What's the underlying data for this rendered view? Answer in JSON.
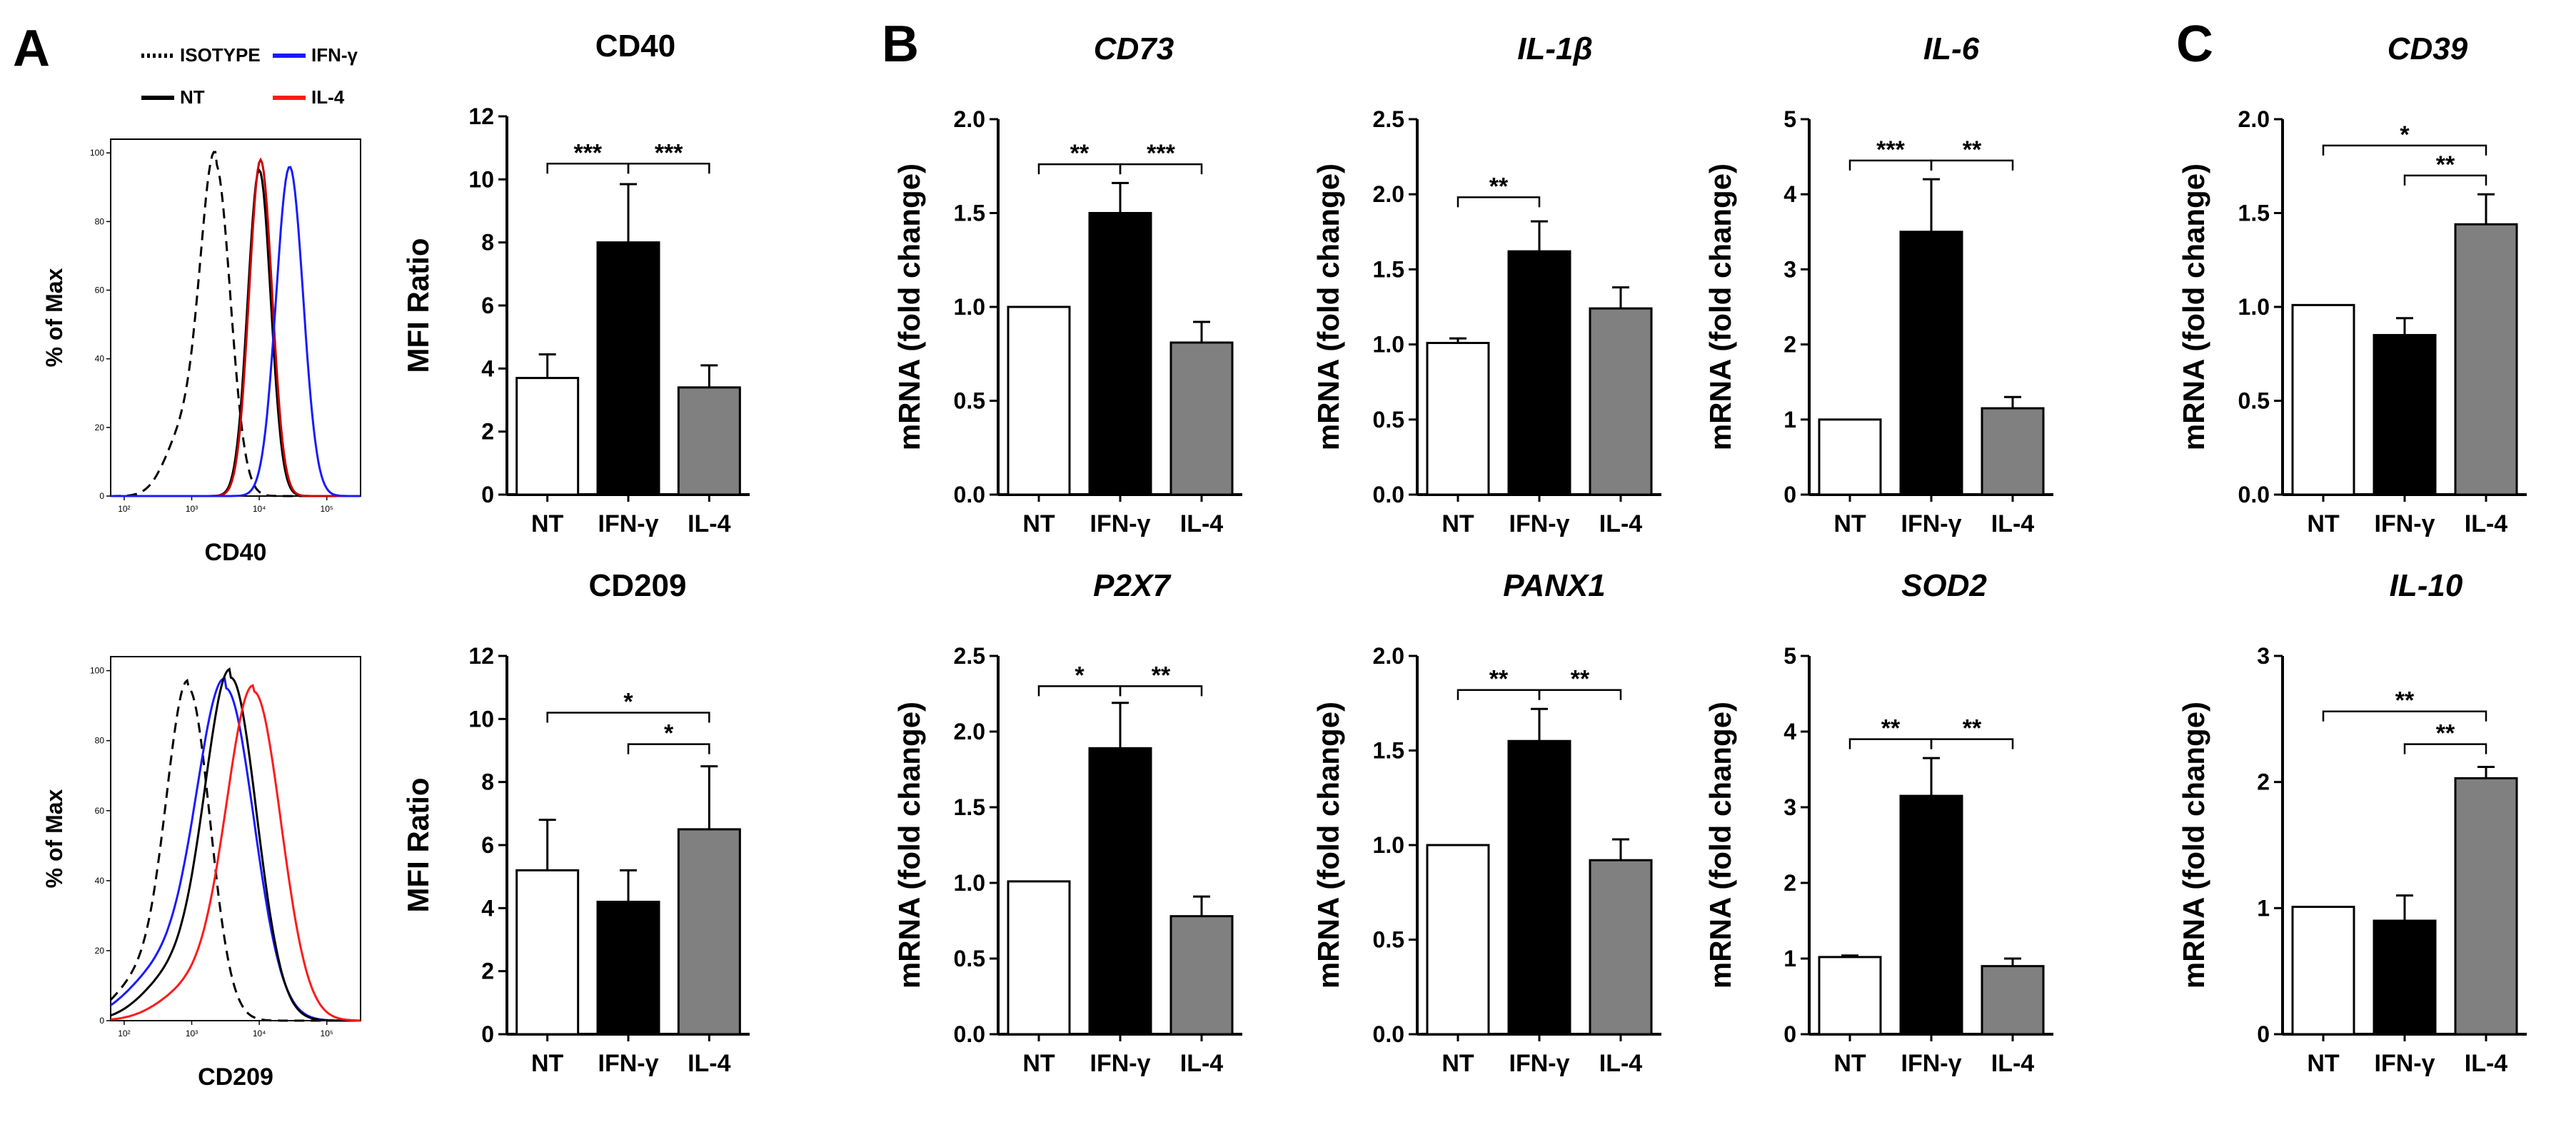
{
  "panel_letters": {
    "a": "A",
    "b": "B",
    "c": "C"
  },
  "legend": {
    "isotype": {
      "label": "ISOTYPE",
      "color": "#000000",
      "dash": "dotted"
    },
    "ifng": {
      "label": "IFN-γ",
      "color": "#1a1aff"
    },
    "nt": {
      "label": "NT",
      "color": "#000000"
    },
    "il4": {
      "label": "IL-4",
      "color": "#ff1a1a"
    }
  },
  "colors": {
    "NT": "#ffffff",
    "IFN-γ": "#000000",
    "IL-4": "#808080"
  },
  "chart_data": [
    {
      "id": "hist_cd40",
      "type": "histogram",
      "xlabel": "CD40",
      "ylabel": "% of Max",
      "yticks": [
        "0",
        "20",
        "40",
        "60",
        "80",
        "100"
      ],
      "xticks": [
        "10²",
        "10³",
        "10⁴",
        "10⁵"
      ],
      "xlim_log10": [
        1.8,
        5.5
      ],
      "ylim": [
        0,
        104
      ],
      "curves": [
        {
          "name": "ISOTYPE",
          "color": "#000000",
          "dash": "14 9",
          "peak_log10": 3.35,
          "peak": 97,
          "sd_log10": 0.22,
          "tail_left": 0.18
        },
        {
          "name": "NT",
          "color": "#000000",
          "dash": "",
          "peak_log10": 4.0,
          "peak": 95,
          "sd_log10": 0.17,
          "tail_left": 0.0
        },
        {
          "name": "IL-4",
          "color": "#cc0000",
          "dash": "",
          "peak_log10": 4.02,
          "peak": 98,
          "sd_log10": 0.17,
          "tail_left": 0.0
        },
        {
          "name": "IFN-γ",
          "color": "#1a1aff",
          "dash": "",
          "peak_log10": 4.45,
          "peak": 96,
          "sd_log10": 0.2,
          "tail_left": 0.0
        }
      ]
    },
    {
      "id": "hist_cd209",
      "type": "histogram",
      "xlabel": "CD209",
      "ylabel": "% of Max",
      "yticks": [
        "0",
        "20",
        "40",
        "60",
        "80",
        "100"
      ],
      "xticks": [
        "10²",
        "10³",
        "10⁴",
        "10⁵"
      ],
      "xlim_log10": [
        1.8,
        5.5
      ],
      "ylim": [
        0,
        104
      ],
      "curves": [
        {
          "name": "ISOTYPE",
          "color": "#000000",
          "dash": "14 9",
          "peak_log10": 2.95,
          "peak": 95,
          "sd_log10": 0.32,
          "tail_left": 0.12
        },
        {
          "name": "IFN-γ",
          "color": "#1a1aff",
          "dash": "",
          "peak_log10": 3.5,
          "peak": 95,
          "sd_log10": 0.42,
          "tail_left": 0.15
        },
        {
          "name": "NT",
          "color": "#000000",
          "dash": "",
          "peak_log10": 3.58,
          "peak": 98,
          "sd_log10": 0.38,
          "tail_left": 0.13
        },
        {
          "name": "IL-4",
          "color": "#ff1a1a",
          "dash": "",
          "peak_log10": 3.92,
          "peak": 94,
          "sd_log10": 0.4,
          "tail_left": 0.1
        }
      ]
    },
    {
      "id": "cd40",
      "type": "bar",
      "title": "CD40",
      "italic": false,
      "ylabel": "MFI Ratio",
      "categories": [
        "NT",
        "IFN-γ",
        "IL-4"
      ],
      "values": [
        3.7,
        8.0,
        3.4
      ],
      "errors": [
        0.75,
        1.85,
        0.7
      ],
      "ylim": [
        0,
        12
      ],
      "yticks": [
        0,
        2,
        4,
        6,
        8,
        10,
        12
      ],
      "sig": [
        {
          "from": 0,
          "to": 1,
          "label": "***",
          "y": 10.5
        },
        {
          "from": 1,
          "to": 2,
          "label": "***",
          "y": 10.5
        }
      ]
    },
    {
      "id": "cd209",
      "type": "bar",
      "title": "CD209",
      "italic": false,
      "ylabel": "MFI Ratio",
      "categories": [
        "NT",
        "IFN-γ",
        "IL-4"
      ],
      "values": [
        5.2,
        4.2,
        6.5
      ],
      "errors": [
        1.6,
        1.0,
        2.0
      ],
      "ylim": [
        0,
        12
      ],
      "yticks": [
        0,
        2,
        4,
        6,
        8,
        10,
        12
      ],
      "sig": [
        {
          "from": 0,
          "to": 2,
          "label": "*",
          "y": 10.2
        },
        {
          "from": 1,
          "to": 2,
          "label": "*",
          "y": 9.2
        }
      ]
    },
    {
      "id": "cd73",
      "type": "bar",
      "title": "CD73",
      "italic": true,
      "ylabel": "mRNA (fold change)",
      "categories": [
        "NT",
        "IFN-γ",
        "IL-4"
      ],
      "values": [
        1.0,
        1.5,
        0.81
      ],
      "errors": [
        0.0,
        0.16,
        0.11
      ],
      "ylim": [
        0,
        2.0
      ],
      "yticks": [
        "0.0",
        "0.5",
        "1.0",
        "1.5",
        "2.0"
      ],
      "sig": [
        {
          "from": 0,
          "to": 1,
          "label": "**",
          "y": 1.76
        },
        {
          "from": 1,
          "to": 2,
          "label": "***",
          "y": 1.76
        }
      ]
    },
    {
      "id": "il1b",
      "type": "bar",
      "title": "IL-1β",
      "italic": true,
      "ylabel": "mRNA (fold change)",
      "categories": [
        "NT",
        "IFN-γ",
        "IL-4"
      ],
      "values": [
        1.01,
        1.62,
        1.24
      ],
      "errors": [
        0.03,
        0.2,
        0.14
      ],
      "ylim": [
        0,
        2.5
      ],
      "yticks": [
        "0.0",
        "0.5",
        "1.0",
        "1.5",
        "2.0",
        "2.5"
      ],
      "sig": [
        {
          "from": 0,
          "to": 1,
          "label": "**",
          "y": 1.98
        }
      ]
    },
    {
      "id": "il6",
      "type": "bar",
      "title": "IL-6",
      "italic": true,
      "ylabel": "mRNA (fold change)",
      "categories": [
        "NT",
        "IFN-γ",
        "IL-4"
      ],
      "values": [
        1.0,
        3.5,
        1.15
      ],
      "errors": [
        0.0,
        0.7,
        0.15
      ],
      "ylim": [
        0,
        5
      ],
      "yticks": [
        "0",
        "1",
        "2",
        "3",
        "4",
        "5"
      ],
      "sig": [
        {
          "from": 0,
          "to": 1,
          "label": "***",
          "y": 4.45
        },
        {
          "from": 1,
          "to": 2,
          "label": "**",
          "y": 4.45
        }
      ]
    },
    {
      "id": "cd39",
      "type": "bar",
      "title": "CD39",
      "italic": true,
      "ylabel": "mRNA (fold change)",
      "categories": [
        "NT",
        "IFN-γ",
        "IL-4"
      ],
      "values": [
        1.01,
        0.85,
        1.44
      ],
      "errors": [
        0.0,
        0.09,
        0.16
      ],
      "ylim": [
        0,
        2.0
      ],
      "yticks": [
        "0.0",
        "0.5",
        "1.0",
        "1.5",
        "2.0"
      ],
      "sig": [
        {
          "from": 0,
          "to": 2,
          "label": "*",
          "y": 1.86
        },
        {
          "from": 1,
          "to": 2,
          "label": "**",
          "y": 1.7
        }
      ]
    },
    {
      "id": "p2x7",
      "type": "bar",
      "title": "P2X7",
      "italic": true,
      "ylabel": "mRNA (fold change)",
      "categories": [
        "NT",
        "IFN-γ",
        "IL-4"
      ],
      "values": [
        1.01,
        1.89,
        0.78
      ],
      "errors": [
        0.0,
        0.3,
        0.13
      ],
      "ylim": [
        0,
        2.5
      ],
      "yticks": [
        "0.0",
        "0.5",
        "1.0",
        "1.5",
        "2.0",
        "2.5"
      ],
      "sig": [
        {
          "from": 0,
          "to": 1,
          "label": "*",
          "y": 2.3
        },
        {
          "from": 1,
          "to": 2,
          "label": "**",
          "y": 2.3
        }
      ]
    },
    {
      "id": "panx1",
      "type": "bar",
      "title": "PANX1",
      "italic": true,
      "ylabel": "mRNA (fold change)",
      "categories": [
        "NT",
        "IFN-γ",
        "IL-4"
      ],
      "values": [
        1.0,
        1.55,
        0.92
      ],
      "errors": [
        0.0,
        0.17,
        0.11
      ],
      "ylim": [
        0,
        2.0
      ],
      "yticks": [
        "0.0",
        "0.5",
        "1.0",
        "1.5",
        "2.0"
      ],
      "sig": [
        {
          "from": 0,
          "to": 1,
          "label": "**",
          "y": 1.82
        },
        {
          "from": 1,
          "to": 2,
          "label": "**",
          "y": 1.82
        }
      ]
    },
    {
      "id": "sod2",
      "type": "bar",
      "title": "SOD2",
      "italic": true,
      "ylabel": "mRNA (fold change)",
      "categories": [
        "NT",
        "IFN-γ",
        "IL-4"
      ],
      "values": [
        1.02,
        3.15,
        0.9
      ],
      "errors": [
        0.02,
        0.5,
        0.1
      ],
      "ylim": [
        0,
        5
      ],
      "yticks": [
        "0",
        "1",
        "2",
        "3",
        "4",
        "5"
      ],
      "sig": [
        {
          "from": 0,
          "to": 1,
          "label": "**",
          "y": 3.9
        },
        {
          "from": 1,
          "to": 2,
          "label": "**",
          "y": 3.9
        }
      ]
    },
    {
      "id": "il10",
      "type": "bar",
      "title": "IL-10",
      "italic": true,
      "ylabel": "mRNA (fold change)",
      "categories": [
        "NT",
        "IFN-γ",
        "IL-4"
      ],
      "values": [
        1.01,
        0.9,
        2.03
      ],
      "errors": [
        0.0,
        0.2,
        0.09
      ],
      "ylim": [
        0,
        3
      ],
      "yticks": [
        "0",
        "1",
        "2",
        "3"
      ],
      "sig": [
        {
          "from": 0,
          "to": 2,
          "label": "**",
          "y": 2.56
        },
        {
          "from": 1,
          "to": 2,
          "label": "**",
          "y": 2.3
        }
      ]
    }
  ]
}
